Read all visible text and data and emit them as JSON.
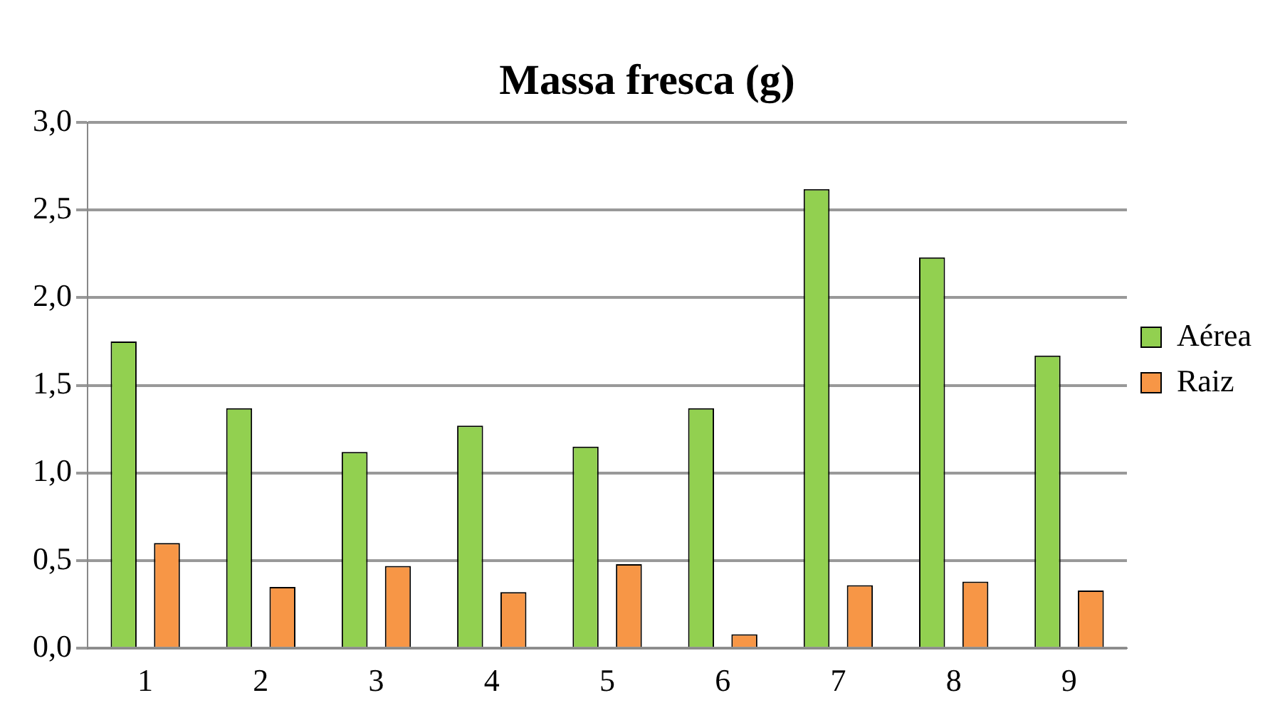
{
  "chart_data": {
    "type": "bar",
    "title": "Massa fresca (g)",
    "categories": [
      "1",
      "2",
      "3",
      "4",
      "5",
      "6",
      "7",
      "8",
      "9"
    ],
    "series": [
      {
        "name": "Aérea",
        "color": "#92d050",
        "values": [
          1.75,
          1.37,
          1.12,
          1.27,
          1.15,
          1.37,
          2.62,
          2.23,
          1.67
        ]
      },
      {
        "name": "Raiz",
        "color": "#f79646",
        "values": [
          0.6,
          0.35,
          0.47,
          0.32,
          0.48,
          0.08,
          0.36,
          0.38,
          0.33
        ]
      }
    ],
    "ylim": [
      0,
      3
    ],
    "yticks": [
      {
        "value": 0,
        "label": "0,0"
      },
      {
        "value": 0.5,
        "label": "0,5"
      },
      {
        "value": 1,
        "label": "1,0"
      },
      {
        "value": 1.5,
        "label": "1,5"
      },
      {
        "value": 2,
        "label": "2,0"
      },
      {
        "value": 2.5,
        "label": "2,5"
      },
      {
        "value": 3,
        "label": "3,0"
      }
    ],
    "grid": "y",
    "legend": "right"
  }
}
